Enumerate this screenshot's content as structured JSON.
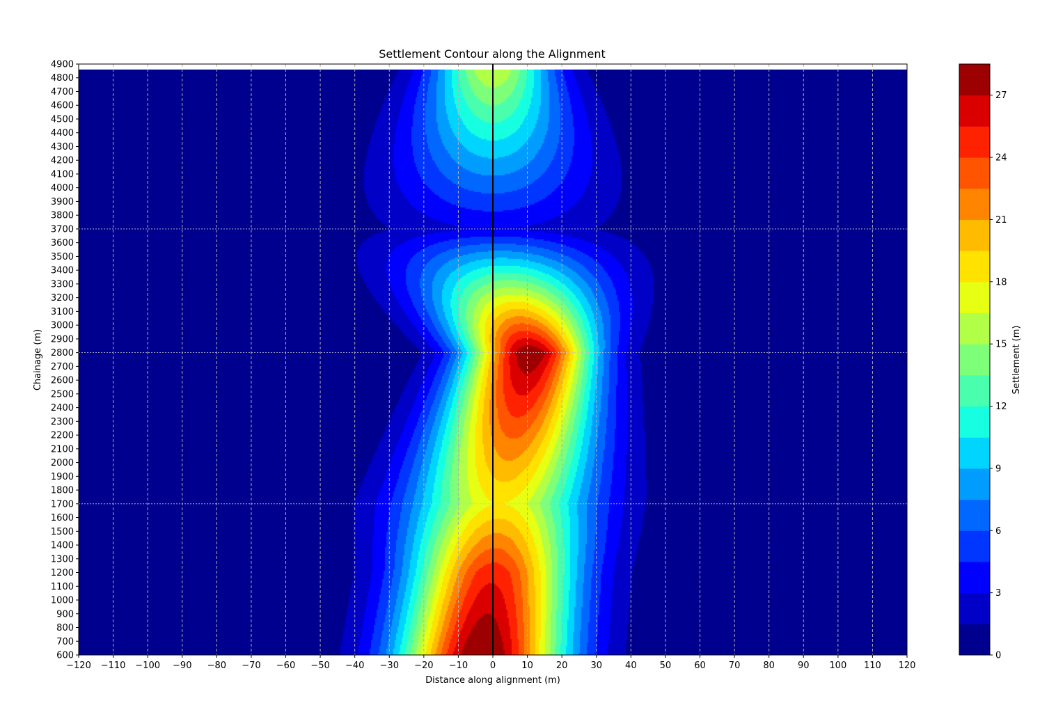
{
  "chart_data": {
    "type": "contour",
    "title": "Settlement Contour along the Alignment",
    "xlabel": "Distance along alignment (m)",
    "ylabel": "Chainage (m)",
    "xlim": [
      -120,
      120
    ],
    "ylim": [
      600,
      4900
    ],
    "data_top_chainage": 4860,
    "xticks": [
      -120,
      -110,
      -100,
      -90,
      -80,
      -70,
      -60,
      -50,
      -40,
      -30,
      -20,
      -10,
      0,
      10,
      20,
      30,
      40,
      50,
      60,
      70,
      80,
      90,
      100,
      110,
      120
    ],
    "xtick_labels": [
      "−120",
      "−110",
      "−100",
      "−90",
      "−80",
      "−70",
      "−60",
      "−50",
      "−40",
      "−30",
      "−20",
      "−10",
      "0",
      "10",
      "20",
      "30",
      "40",
      "50",
      "60",
      "70",
      "80",
      "90",
      "100",
      "110",
      "120"
    ],
    "yticks": [
      600,
      700,
      800,
      900,
      1000,
      1100,
      1200,
      1300,
      1400,
      1500,
      1600,
      1700,
      1800,
      1900,
      2000,
      2100,
      2200,
      2300,
      2400,
      2500,
      2600,
      2700,
      2800,
      2900,
      3000,
      3100,
      3200,
      3300,
      3400,
      3500,
      3600,
      3700,
      3800,
      3900,
      4000,
      4100,
      4200,
      4300,
      4400,
      4500,
      4600,
      4700,
      4800,
      4900
    ],
    "grid": "vertical dashed",
    "highlighted_chainages": [
      1700,
      2800,
      3700
    ],
    "alignment_line_x": 0,
    "colormap": "jet",
    "colorbar": {
      "label": "Settlement (m)",
      "min": 0,
      "max": 28.5,
      "levels": [
        0,
        1.5,
        3,
        4.5,
        6,
        7.5,
        9,
        10.5,
        12,
        13.5,
        15,
        16.5,
        18,
        19.5,
        21,
        22.5,
        24,
        25.5,
        27,
        28.5
      ],
      "colors": [
        "#00008f",
        "#0000c6",
        "#0000fd",
        "#0036ff",
        "#0068ff",
        "#009dff",
        "#00d5ff",
        "#16ffe1",
        "#49ffad",
        "#7dff7a",
        "#b1ff46",
        "#e6ff12",
        "#ffe200",
        "#ffbb00",
        "#ff8500",
        "#ff5400",
        "#ff2200",
        "#db0000",
        "#9c0000"
      ],
      "ticks": [
        0,
        3,
        6,
        9,
        12,
        15,
        18,
        21,
        24,
        27
      ],
      "tick_labels": [
        "0",
        "3",
        "6",
        "9",
        "12",
        "15",
        "18",
        "21",
        "24",
        "27"
      ]
    },
    "sections": [
      {
        "chainage": 600,
        "peak": 29.0,
        "offset": -3,
        "width": 17
      },
      {
        "chainage": 1200,
        "peak": 25.0,
        "offset": 0,
        "width": 17
      },
      {
        "chainage": 1700,
        "peak": 18.0,
        "offset": 2,
        "width": 19
      },
      {
        "chainage": 2800,
        "peak": 28.5,
        "offset": 11,
        "width": 13
      },
      {
        "chainage": 3700,
        "peak": 3.0,
        "offset": 0,
        "width": 25
      },
      {
        "chainage": 4900,
        "peak": 17.0,
        "offset": 0,
        "width": 12
      }
    ]
  }
}
